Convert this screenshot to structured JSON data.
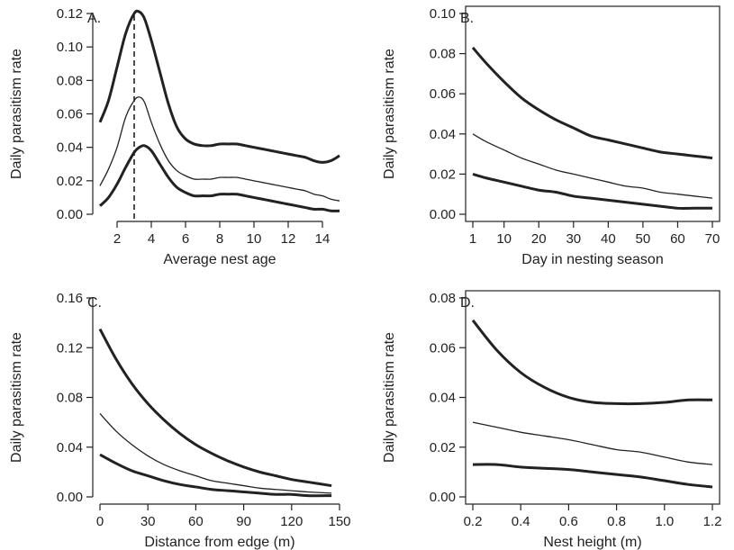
{
  "chart_data": [
    {
      "type": "line",
      "panel_label": "A.",
      "xlabel": "Average nest age",
      "ylabel": "Daily parasitism rate",
      "xlim": [
        1,
        15
      ],
      "ylim": [
        0,
        0.12
      ],
      "xticks": [
        2,
        4,
        6,
        8,
        10,
        12,
        14
      ],
      "yticks": [
        0.0,
        0.02,
        0.04,
        0.06,
        0.08,
        0.1,
        0.12
      ],
      "ytick_labels": [
        "0.00",
        "0.02",
        "0.04",
        "0.06",
        "0.08",
        "0.10",
        "0.12"
      ],
      "vline": 3,
      "series": [
        {
          "role": "upper",
          "x": [
            1,
            1.5,
            2,
            2.5,
            3,
            3.3,
            3.6,
            4,
            4.5,
            5,
            5.5,
            6,
            6.5,
            7,
            7.5,
            8,
            8.5,
            9,
            9.5,
            10,
            10.5,
            11,
            11.5,
            12,
            12.5,
            13,
            13.5,
            14,
            14.5,
            15
          ],
          "y": [
            0.055,
            0.068,
            0.088,
            0.108,
            0.12,
            0.121,
            0.117,
            0.104,
            0.085,
            0.066,
            0.052,
            0.045,
            0.042,
            0.041,
            0.041,
            0.042,
            0.042,
            0.042,
            0.041,
            0.04,
            0.039,
            0.038,
            0.037,
            0.036,
            0.035,
            0.034,
            0.032,
            0.031,
            0.032,
            0.035
          ]
        },
        {
          "role": "estimate",
          "x": [
            1,
            1.5,
            2,
            2.5,
            3,
            3.3,
            3.6,
            4,
            4.5,
            5,
            5.5,
            6,
            6.5,
            7,
            7.5,
            8,
            8.5,
            9,
            9.5,
            10,
            10.5,
            11,
            11.5,
            12,
            12.5,
            13,
            13.5,
            14,
            14.5,
            15
          ],
          "y": [
            0.017,
            0.027,
            0.04,
            0.058,
            0.068,
            0.07,
            0.067,
            0.055,
            0.042,
            0.032,
            0.026,
            0.023,
            0.021,
            0.021,
            0.021,
            0.022,
            0.022,
            0.022,
            0.021,
            0.02,
            0.019,
            0.018,
            0.017,
            0.016,
            0.015,
            0.014,
            0.012,
            0.011,
            0.009,
            0.008
          ]
        },
        {
          "role": "lower",
          "x": [
            1,
            1.5,
            2,
            2.5,
            3,
            3.3,
            3.6,
            4,
            4.5,
            5,
            5.5,
            6,
            6.5,
            7,
            7.5,
            8,
            8.5,
            9,
            9.5,
            10,
            10.5,
            11,
            11.5,
            12,
            12.5,
            13,
            13.5,
            14,
            14.5,
            15
          ],
          "y": [
            0.005,
            0.01,
            0.018,
            0.028,
            0.037,
            0.04,
            0.041,
            0.038,
            0.03,
            0.022,
            0.016,
            0.013,
            0.011,
            0.011,
            0.011,
            0.012,
            0.012,
            0.012,
            0.011,
            0.01,
            0.009,
            0.008,
            0.007,
            0.006,
            0.005,
            0.004,
            0.003,
            0.003,
            0.002,
            0.002
          ]
        }
      ]
    },
    {
      "type": "line",
      "panel_label": "B.",
      "xlabel": "Day in nesting season",
      "ylabel": "Daily parasitism rate",
      "xlim": [
        1,
        70
      ],
      "ylim": [
        0,
        0.1
      ],
      "xticks": [
        1,
        10,
        20,
        30,
        40,
        50,
        60,
        70
      ],
      "yticks": [
        0.0,
        0.02,
        0.04,
        0.06,
        0.08,
        0.1
      ],
      "ytick_labels": [
        "0.00",
        "0.02",
        "0.04",
        "0.06",
        "0.08",
        "0.10"
      ],
      "series": [
        {
          "role": "upper",
          "x": [
            1,
            5,
            10,
            15,
            20,
            25,
            30,
            35,
            40,
            45,
            50,
            55,
            60,
            65,
            70
          ],
          "y": [
            0.083,
            0.075,
            0.066,
            0.058,
            0.052,
            0.047,
            0.043,
            0.039,
            0.037,
            0.035,
            0.033,
            0.031,
            0.03,
            0.029,
            0.028
          ]
        },
        {
          "role": "estimate",
          "x": [
            1,
            5,
            10,
            15,
            20,
            25,
            30,
            35,
            40,
            45,
            50,
            55,
            60,
            65,
            70
          ],
          "y": [
            0.04,
            0.036,
            0.032,
            0.028,
            0.025,
            0.022,
            0.02,
            0.018,
            0.016,
            0.014,
            0.013,
            0.011,
            0.01,
            0.009,
            0.008
          ]
        },
        {
          "role": "lower",
          "x": [
            1,
            5,
            10,
            15,
            20,
            25,
            30,
            35,
            40,
            45,
            50,
            55,
            60,
            65,
            70
          ],
          "y": [
            0.02,
            0.018,
            0.016,
            0.014,
            0.012,
            0.011,
            0.009,
            0.008,
            0.007,
            0.006,
            0.005,
            0.004,
            0.003,
            0.003,
            0.003
          ]
        }
      ]
    },
    {
      "type": "line",
      "panel_label": "C.",
      "xlabel": "Distance from edge (m)",
      "ylabel": "Daily parasitism rate",
      "xlim": [
        0,
        150
      ],
      "ylim": [
        0,
        0.16
      ],
      "xticks": [
        0,
        30,
        60,
        90,
        120,
        150
      ],
      "yticks": [
        0.0,
        0.04,
        0.08,
        0.12,
        0.16
      ],
      "ytick_labels": [
        "0.00",
        "0.04",
        "0.08",
        "0.12",
        "0.16"
      ],
      "series": [
        {
          "role": "upper",
          "x": [
            0,
            10,
            20,
            30,
            40,
            50,
            60,
            70,
            80,
            90,
            100,
            110,
            120,
            130,
            145
          ],
          "y": [
            0.135,
            0.111,
            0.091,
            0.075,
            0.062,
            0.051,
            0.042,
            0.035,
            0.029,
            0.024,
            0.02,
            0.017,
            0.014,
            0.012,
            0.009
          ]
        },
        {
          "role": "estimate",
          "x": [
            0,
            10,
            20,
            30,
            40,
            50,
            60,
            70,
            80,
            90,
            100,
            110,
            120,
            130,
            145
          ],
          "y": [
            0.067,
            0.053,
            0.042,
            0.033,
            0.026,
            0.021,
            0.017,
            0.013,
            0.011,
            0.009,
            0.007,
            0.006,
            0.005,
            0.004,
            0.003
          ]
        },
        {
          "role": "lower",
          "x": [
            0,
            10,
            20,
            30,
            40,
            50,
            60,
            70,
            80,
            90,
            100,
            110,
            120,
            130,
            145
          ],
          "y": [
            0.034,
            0.027,
            0.021,
            0.017,
            0.013,
            0.01,
            0.008,
            0.006,
            0.005,
            0.004,
            0.003,
            0.002,
            0.002,
            0.001,
            0.001
          ]
        }
      ]
    },
    {
      "type": "line",
      "panel_label": "D.",
      "xlabel": "Nest height (m)",
      "ylabel": "Daily parasitism rate",
      "xlim": [
        0.2,
        1.2
      ],
      "ylim": [
        0,
        0.08
      ],
      "xticks": [
        0.2,
        0.4,
        0.6,
        0.8,
        1.0,
        1.2
      ],
      "xtick_labels": [
        "0.2",
        "0.4",
        "0.6",
        "0.8",
        "1.0",
        "1.2"
      ],
      "yticks": [
        0.0,
        0.02,
        0.04,
        0.06,
        0.08
      ],
      "ytick_labels": [
        "0.00",
        "0.02",
        "0.04",
        "0.06",
        "0.08"
      ],
      "series": [
        {
          "role": "upper",
          "x": [
            0.2,
            0.3,
            0.4,
            0.5,
            0.6,
            0.7,
            0.8,
            0.9,
            1.0,
            1.1,
            1.2
          ],
          "y": [
            0.071,
            0.059,
            0.05,
            0.044,
            0.04,
            0.038,
            0.0375,
            0.0375,
            0.038,
            0.039,
            0.039
          ]
        },
        {
          "role": "estimate",
          "x": [
            0.2,
            0.3,
            0.4,
            0.5,
            0.6,
            0.7,
            0.8,
            0.9,
            1.0,
            1.1,
            1.2
          ],
          "y": [
            0.03,
            0.028,
            0.026,
            0.0245,
            0.023,
            0.021,
            0.019,
            0.018,
            0.016,
            0.014,
            0.013
          ]
        },
        {
          "role": "lower",
          "x": [
            0.2,
            0.3,
            0.4,
            0.5,
            0.6,
            0.7,
            0.8,
            0.9,
            1.0,
            1.1,
            1.2
          ],
          "y": [
            0.013,
            0.013,
            0.012,
            0.0115,
            0.011,
            0.01,
            0.009,
            0.008,
            0.0065,
            0.005,
            0.004
          ]
        }
      ]
    }
  ]
}
